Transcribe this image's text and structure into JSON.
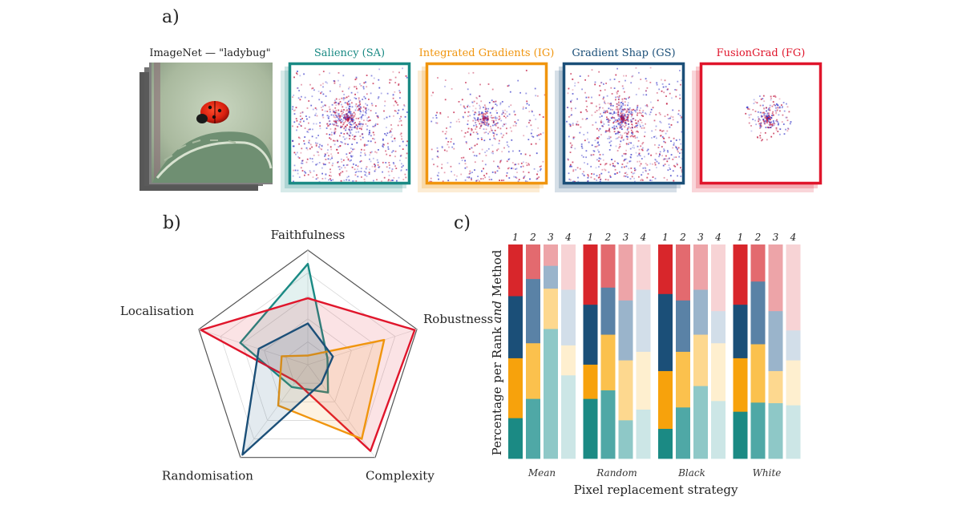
{
  "panel_a": {
    "label": "a)",
    "original_caption": "ImageNet — \"ladybug\"",
    "maps": [
      {
        "key": "SA",
        "title": "Saliency (SA)",
        "color": "#1a8a84",
        "spread": "wide"
      },
      {
        "key": "IG",
        "title": "Integrated Gradients (IG)",
        "color": "#f0950e",
        "spread": "medium"
      },
      {
        "key": "GS",
        "title": "Gradient Shap (GS)",
        "color": "#1b4f78",
        "spread": "wide"
      },
      {
        "key": "FG",
        "title": "FusionGrad (FG)",
        "color": "#e0152b",
        "spread": "tight"
      }
    ]
  },
  "chart_data": [
    {
      "type": "radar",
      "panel_label": "b)",
      "axes": [
        "Faithfulness",
        "Robustness",
        "Complexity",
        "Randomisation",
        "Localisation"
      ],
      "range": [
        0,
        1
      ],
      "grid": true,
      "series": [
        {
          "color": "#1a8a84",
          "values": [
            0.88,
            0.18,
            0.3,
            0.24,
            0.62
          ]
        },
        {
          "color": "#e0152b",
          "values": [
            0.58,
            0.98,
            0.93,
            0.18,
            0.98
          ]
        },
        {
          "color": "#f0950e",
          "values": [
            0.08,
            0.7,
            0.8,
            0.44,
            0.24
          ]
        },
        {
          "color": "#1b4f78",
          "values": [
            0.36,
            0.23,
            0.2,
            0.97,
            0.45
          ]
        }
      ]
    },
    {
      "type": "bar",
      "stacked": true,
      "panel_label": "c)",
      "ylabel": "Percentage per Rank and Method",
      "ylabel_parts": [
        "Percentage per Rank ",
        "and",
        " Method"
      ],
      "xlabel": "Pixel replacement strategy",
      "rank_labels": [
        "1",
        "2",
        "3",
        "4"
      ],
      "groups": [
        "Mean",
        "Random",
        "Black",
        "White"
      ],
      "method_order_bottom_to_top": [
        "SA",
        "IG",
        "GS",
        "FG"
      ],
      "colors": {
        "SA": [
          "#1b8a84",
          "#4fa8a6",
          "#8ec8c7",
          "#cce6e6"
        ],
        "IG": [
          "#f7a20c",
          "#fbc14d",
          "#fdd88f",
          "#feefcf"
        ],
        "GS": [
          "#1b4f78",
          "#5a82a6",
          "#9ab4cb",
          "#d2dee9"
        ],
        "FG": [
          "#d8262b",
          "#e36a6f",
          "#eda4a8",
          "#f7d3d5"
        ]
      },
      "data": {
        "Mean": [
          [
            19,
            28,
            74,
            39
          ],
          [
            28,
            26,
            23,
            14
          ],
          [
            29,
            30,
            13,
            26
          ],
          [
            24,
            16,
            12,
            21
          ]
        ],
        "Random": [
          [
            28,
            32,
            18,
            23
          ],
          [
            16,
            26,
            28,
            27
          ],
          [
            28,
            22,
            28,
            29
          ],
          [
            28,
            20,
            26,
            21
          ]
        ],
        "Black": [
          [
            14,
            24,
            34,
            27
          ],
          [
            27,
            26,
            24,
            27
          ],
          [
            36,
            24,
            21,
            15
          ],
          [
            23,
            26,
            21,
            31
          ]
        ],
        "White": [
          [
            22,
            26,
            26,
            25
          ],
          [
            25,
            27,
            15,
            21
          ],
          [
            25,
            29,
            28,
            14
          ],
          [
            28,
            17,
            31,
            40
          ]
        ]
      }
    }
  ]
}
